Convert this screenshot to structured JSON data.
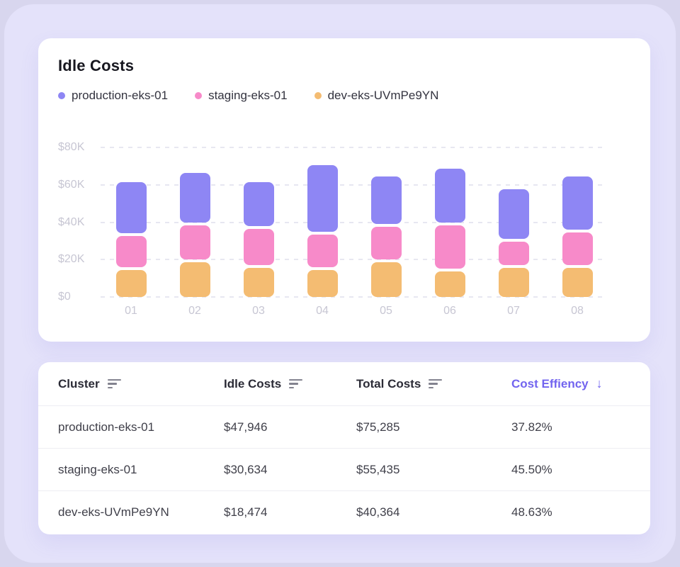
{
  "theme": {
    "bg_outer": "#d8d6ee",
    "bg_surface": "#e4e2fa",
    "card_bg": "#ffffff",
    "accent_purple": "#7264ef",
    "series_colors": {
      "production": "#8e86f4",
      "staging": "#f78ac9",
      "dev": "#f4bc72"
    },
    "axis_label_color": "#c7c6d3",
    "grid_color": "#e7e7f1"
  },
  "chart_card": {
    "title": "Idle Costs",
    "legend": [
      {
        "label": "production-eks-01",
        "color": "#8e86f4"
      },
      {
        "label": "staging-eks-01",
        "color": "#f78ac9"
      },
      {
        "label": "dev-eks-UVmPe9YN",
        "color": "#f4bc72"
      }
    ]
  },
  "chart_data": {
    "type": "bar",
    "stacked": true,
    "title": "Idle Costs",
    "units": "USD (thousands)",
    "categories": [
      "01",
      "02",
      "03",
      "04",
      "05",
      "06",
      "07",
      "08"
    ],
    "series": [
      {
        "name": "dev-eks-UVmPe9YN",
        "color": "#f4bc72",
        "values": [
          16,
          20,
          17,
          16,
          20,
          15,
          17,
          17
        ]
      },
      {
        "name": "staging-eks-01",
        "color": "#f78ac9",
        "values": [
          18,
          20,
          21,
          19,
          19,
          25,
          14,
          19
        ]
      },
      {
        "name": "production-eks-01",
        "color": "#8e86f4",
        "values": [
          29,
          28,
          25,
          37,
          27,
          30,
          28,
          30
        ]
      }
    ],
    "ylim": [
      0,
      80
    ],
    "yticks": [
      0,
      20,
      40,
      60,
      80
    ],
    "ytick_labels": [
      "$0",
      "$20K",
      "$40K",
      "$60K",
      "$80K"
    ],
    "grid": "horizontal-dashed",
    "legend_position": "top-left"
  },
  "table": {
    "columns": [
      {
        "label": "Cluster",
        "sort_icon": true,
        "sorted": false
      },
      {
        "label": "Idle Costs",
        "sort_icon": true,
        "sorted": false
      },
      {
        "label": "Total Costs",
        "sort_icon": true,
        "sorted": false
      },
      {
        "label": "Cost Effiency",
        "sort_icon": false,
        "sorted": true,
        "arrow": "↓"
      }
    ],
    "rows": [
      {
        "cells": [
          "production-eks-01",
          "$47,946",
          "$75,285",
          "37.82%"
        ]
      },
      {
        "cells": [
          "staging-eks-01",
          "$30,634",
          "$55,435",
          "45.50%"
        ]
      },
      {
        "cells": [
          "dev-eks-UVmPe9YN",
          "$18,474",
          "$40,364",
          "48.63%"
        ]
      }
    ]
  }
}
